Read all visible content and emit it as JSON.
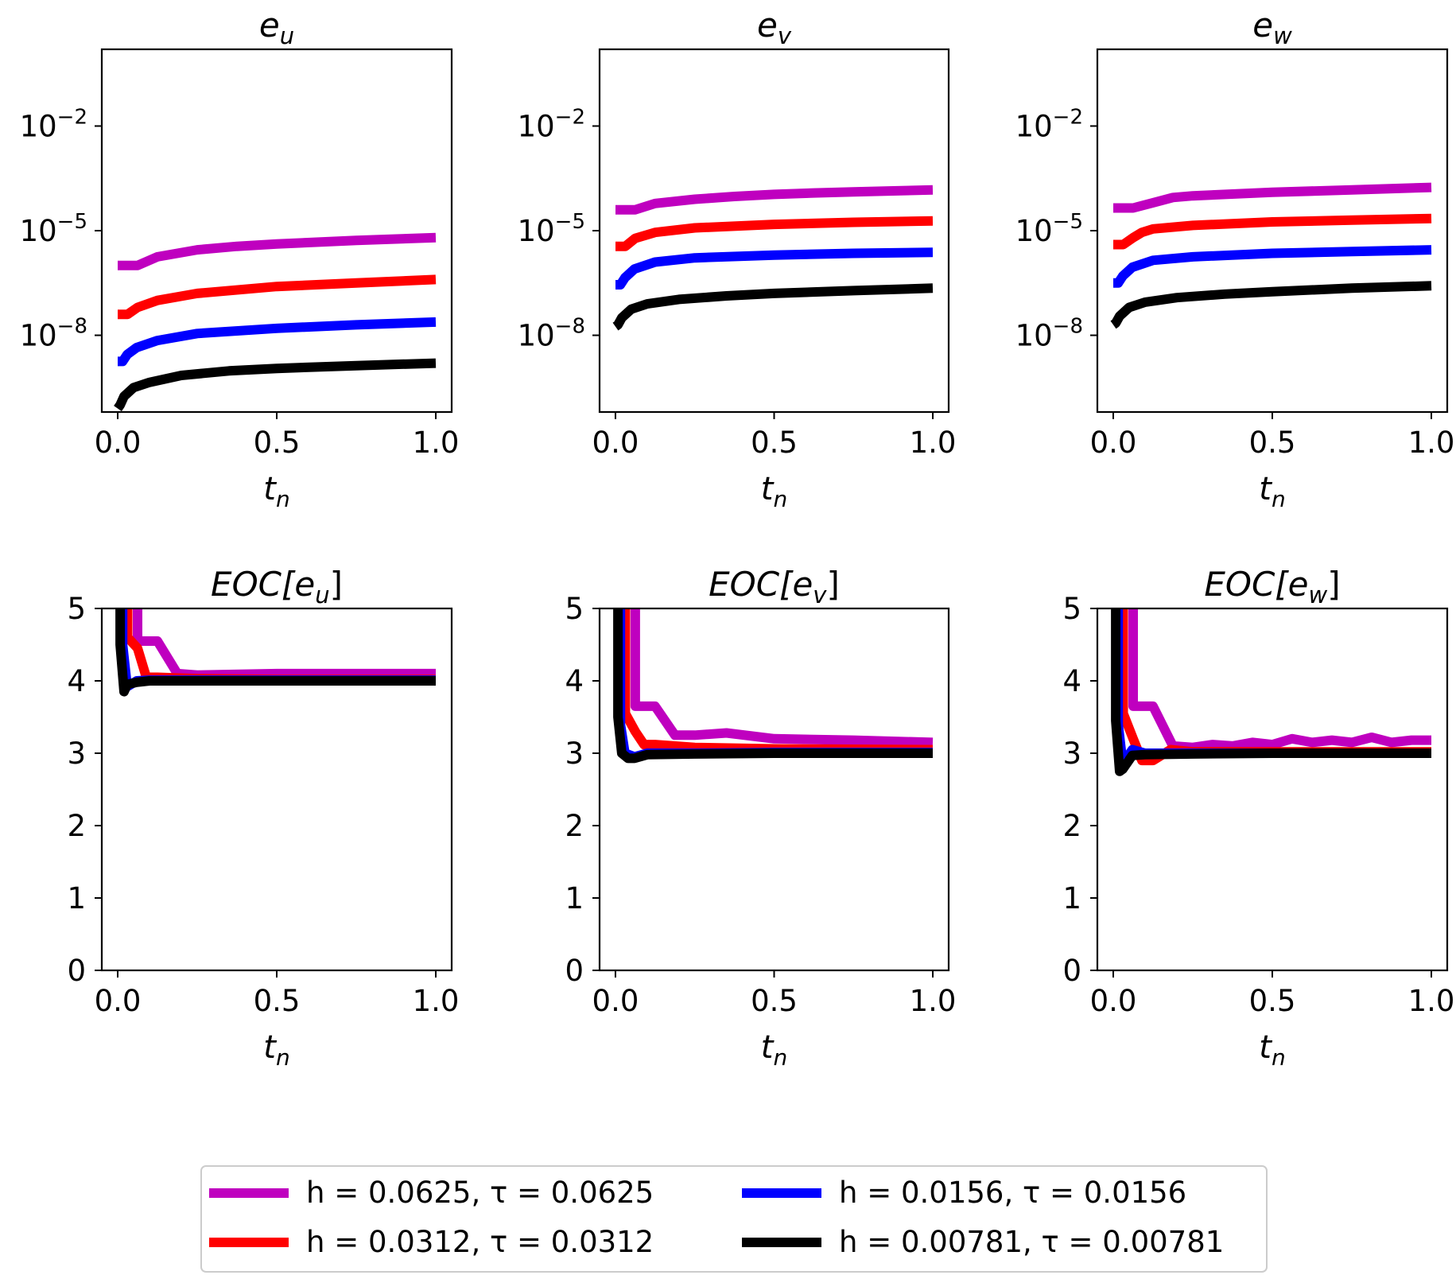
{
  "legend": {
    "items": [
      {
        "label": "h = 0.0625, τ = 0.0625",
        "color": "#bf00bf"
      },
      {
        "label": "h = 0.0312, τ = 0.0312",
        "color": "#ff0000"
      },
      {
        "label": "h = 0.0156, τ = 0.0156",
        "color": "#0000ff"
      },
      {
        "label": "h = 0.00781, τ = 0.00781",
        "color": "#000000"
      }
    ]
  },
  "chart_data": [
    {
      "type": "line",
      "title": "e_u",
      "title_base": "e",
      "title_sub": "u",
      "xlabel_base": "t",
      "xlabel_sub": "n",
      "yscale": "log",
      "xlim": [
        -0.05,
        1.05
      ],
      "ylim_log10": [
        -10.2,
        0.2
      ],
      "xticks": [
        0,
        0.5,
        1
      ],
      "xtick_labels": [
        "0.0",
        "0.5",
        "1.0"
      ],
      "yticks_log10": [
        -2,
        -5,
        -8
      ],
      "ytick_labels": [
        {
          "base": "10",
          "exp": "−2"
        },
        {
          "base": "10",
          "exp": "−5"
        },
        {
          "base": "10",
          "exp": "−8"
        }
      ],
      "series": [
        {
          "name": "h = 0.0625, τ = 0.0625",
          "color": "#bf00bf",
          "x": [
            0,
            0.0625,
            0.125,
            0.25,
            0.375,
            0.5,
            0.625,
            0.75,
            0.875,
            1.0
          ],
          "y_log10": [
            -6.0,
            -6.0,
            -5.75,
            -5.55,
            -5.45,
            -5.38,
            -5.33,
            -5.28,
            -5.24,
            -5.2
          ]
        },
        {
          "name": "h = 0.0312, τ = 0.0312",
          "color": "#ff0000",
          "x": [
            0,
            0.0312,
            0.0625,
            0.125,
            0.25,
            0.5,
            0.75,
            1.0
          ],
          "y_log10": [
            -7.4,
            -7.4,
            -7.2,
            -7.0,
            -6.8,
            -6.6,
            -6.5,
            -6.4
          ]
        },
        {
          "name": "h = 0.0156, τ = 0.0156",
          "color": "#0000ff",
          "x": [
            0,
            0.0156,
            0.03,
            0.06,
            0.125,
            0.25,
            0.5,
            0.75,
            1.0
          ],
          "y_log10": [
            -8.75,
            -8.75,
            -8.55,
            -8.35,
            -8.15,
            -7.95,
            -7.8,
            -7.7,
            -7.62
          ]
        },
        {
          "name": "h = 0.00781, τ = 0.00781",
          "color": "#000000",
          "x": [
            0,
            0.0078,
            0.02,
            0.05,
            0.1,
            0.2,
            0.35,
            0.5,
            0.75,
            1.0
          ],
          "y_log10": [
            -10.1,
            -10.0,
            -9.75,
            -9.5,
            -9.35,
            -9.15,
            -9.02,
            -8.95,
            -8.87,
            -8.8
          ]
        }
      ]
    },
    {
      "type": "line",
      "title": "e_v",
      "title_base": "e",
      "title_sub": "v",
      "xlabel_base": "t",
      "xlabel_sub": "n",
      "yscale": "log",
      "xlim": [
        -0.05,
        1.05
      ],
      "ylim_log10": [
        -10.2,
        0.2
      ],
      "xticks": [
        0,
        0.5,
        1
      ],
      "xtick_labels": [
        "0.0",
        "0.5",
        "1.0"
      ],
      "yticks_log10": [
        -2,
        -5,
        -8
      ],
      "ytick_labels": [
        {
          "base": "10",
          "exp": "−2"
        },
        {
          "base": "10",
          "exp": "−5"
        },
        {
          "base": "10",
          "exp": "−8"
        }
      ],
      "series": [
        {
          "name": "h = 0.0625, τ = 0.0625",
          "color": "#bf00bf",
          "x": [
            0,
            0.0625,
            0.125,
            0.25,
            0.375,
            0.5,
            0.625,
            0.75,
            0.875,
            1.0
          ],
          "y_log10": [
            -4.4,
            -4.4,
            -4.22,
            -4.1,
            -4.02,
            -3.96,
            -3.92,
            -3.89,
            -3.86,
            -3.83
          ]
        },
        {
          "name": "h = 0.0312, τ = 0.0312",
          "color": "#ff0000",
          "x": [
            0,
            0.0312,
            0.0625,
            0.125,
            0.25,
            0.5,
            0.75,
            1.0
          ],
          "y_log10": [
            -5.45,
            -5.45,
            -5.22,
            -5.05,
            -4.92,
            -4.82,
            -4.76,
            -4.72
          ]
        },
        {
          "name": "h = 0.0156, τ = 0.0156",
          "color": "#0000ff",
          "x": [
            0,
            0.0156,
            0.03,
            0.06,
            0.125,
            0.25,
            0.5,
            0.75,
            1.0
          ],
          "y_log10": [
            -6.55,
            -6.55,
            -6.35,
            -6.1,
            -5.9,
            -5.78,
            -5.7,
            -5.65,
            -5.62
          ]
        },
        {
          "name": "h = 0.00781, τ = 0.00781",
          "color": "#000000",
          "x": [
            0,
            0.0078,
            0.02,
            0.05,
            0.1,
            0.2,
            0.35,
            0.5,
            0.75,
            1.0
          ],
          "y_log10": [
            -7.75,
            -7.7,
            -7.5,
            -7.25,
            -7.1,
            -6.97,
            -6.87,
            -6.8,
            -6.72,
            -6.65
          ]
        }
      ]
    },
    {
      "type": "line",
      "title": "e_w",
      "title_base": "e",
      "title_sub": "w",
      "xlabel_base": "t",
      "xlabel_sub": "n",
      "yscale": "log",
      "xlim": [
        -0.05,
        1.05
      ],
      "ylim_log10": [
        -10.2,
        0.2
      ],
      "xticks": [
        0,
        0.5,
        1
      ],
      "xtick_labels": [
        "0.0",
        "0.5",
        "1.0"
      ],
      "yticks_log10": [
        -2,
        -5,
        -8
      ],
      "ytick_labels": [
        {
          "base": "10",
          "exp": "−2"
        },
        {
          "base": "10",
          "exp": "−5"
        },
        {
          "base": "10",
          "exp": "−8"
        }
      ],
      "series": [
        {
          "name": "h = 0.0625, τ = 0.0625",
          "color": "#bf00bf",
          "x": [
            0,
            0.0625,
            0.125,
            0.1875,
            0.25,
            0.5,
            0.75,
            1.0
          ],
          "y_log10": [
            -4.35,
            -4.35,
            -4.2,
            -4.05,
            -4.0,
            -3.9,
            -3.83,
            -3.76
          ]
        },
        {
          "name": "h = 0.0312, τ = 0.0312",
          "color": "#ff0000",
          "x": [
            0,
            0.0312,
            0.0625,
            0.09,
            0.125,
            0.25,
            0.5,
            0.75,
            1.0
          ],
          "y_log10": [
            -5.4,
            -5.4,
            -5.2,
            -5.05,
            -4.95,
            -4.85,
            -4.75,
            -4.7,
            -4.65
          ]
        },
        {
          "name": "h = 0.0156, τ = 0.0156",
          "color": "#0000ff",
          "x": [
            0,
            0.0156,
            0.03,
            0.06,
            0.125,
            0.25,
            0.5,
            0.75,
            1.0
          ],
          "y_log10": [
            -6.5,
            -6.5,
            -6.3,
            -6.05,
            -5.85,
            -5.75,
            -5.65,
            -5.6,
            -5.55
          ]
        },
        {
          "name": "h = 0.00781, τ = 0.00781",
          "color": "#000000",
          "x": [
            0,
            0.0078,
            0.02,
            0.05,
            0.1,
            0.2,
            0.35,
            0.5,
            0.75,
            1.0
          ],
          "y_log10": [
            -7.7,
            -7.65,
            -7.45,
            -7.2,
            -7.05,
            -6.92,
            -6.82,
            -6.75,
            -6.65,
            -6.58
          ]
        }
      ]
    },
    {
      "type": "line",
      "title": "EOC[e_u]",
      "title_base": "EOC[e",
      "title_sub": "u",
      "title_tail": "]",
      "xlabel_base": "t",
      "xlabel_sub": "n",
      "yscale": "linear",
      "xlim": [
        -0.05,
        1.05
      ],
      "ylim": [
        0,
        5
      ],
      "xticks": [
        0,
        0.5,
        1
      ],
      "xtick_labels": [
        "0.0",
        "0.5",
        "1.0"
      ],
      "yticks": [
        0,
        1,
        2,
        3,
        4,
        5
      ],
      "ytick_labels": [
        "0",
        "1",
        "2",
        "3",
        "4",
        "5"
      ],
      "series": [
        {
          "name": "h = 0.0625, τ = 0.0625",
          "color": "#bf00bf",
          "x": [
            0.0625,
            0.0625,
            0.125,
            0.1875,
            0.25,
            0.5,
            0.75,
            1.0
          ],
          "y": [
            5.3,
            4.55,
            4.55,
            4.1,
            4.08,
            4.1,
            4.1,
            4.1
          ]
        },
        {
          "name": "h = 0.0312, τ = 0.0312",
          "color": "#ff0000",
          "x": [
            0.0312,
            0.0312,
            0.0625,
            0.09,
            0.125,
            0.25,
            0.5,
            1.0
          ],
          "y": [
            5.3,
            4.6,
            4.45,
            4.05,
            4.05,
            4.03,
            4.02,
            4.02
          ]
        },
        {
          "name": "h = 0.0156, τ = 0.0156",
          "color": "#0000ff",
          "x": [
            0.0156,
            0.0156,
            0.03,
            0.06,
            0.1,
            0.25,
            0.5,
            1.0
          ],
          "y": [
            5.3,
            4.5,
            3.92,
            4.0,
            4.01,
            4.01,
            4.01,
            4.01
          ]
        },
        {
          "name": "h = 0.00781, τ = 0.00781",
          "color": "#000000",
          "x": [
            0.0078,
            0.0078,
            0.02,
            0.03,
            0.06,
            0.1,
            0.25,
            0.5,
            1.0
          ],
          "y": [
            5.3,
            4.5,
            3.85,
            3.95,
            3.98,
            4.0,
            4.0,
            4.0,
            4.0
          ]
        }
      ]
    },
    {
      "type": "line",
      "title": "EOC[e_v]",
      "title_base": "EOC[e",
      "title_sub": "v",
      "title_tail": "]",
      "xlabel_base": "t",
      "xlabel_sub": "n",
      "yscale": "linear",
      "xlim": [
        -0.05,
        1.05
      ],
      "ylim": [
        0,
        5
      ],
      "xticks": [
        0,
        0.5,
        1
      ],
      "xtick_labels": [
        "0.0",
        "0.5",
        "1.0"
      ],
      "yticks": [
        0,
        1,
        2,
        3,
        4,
        5
      ],
      "ytick_labels": [
        "0",
        "1",
        "2",
        "3",
        "4",
        "5"
      ],
      "series": [
        {
          "name": "h = 0.0625, τ = 0.0625",
          "color": "#bf00bf",
          "x": [
            0.0625,
            0.0625,
            0.125,
            0.1875,
            0.25,
            0.35,
            0.5,
            0.75,
            1.0
          ],
          "y": [
            5.3,
            3.65,
            3.65,
            3.25,
            3.25,
            3.28,
            3.2,
            3.18,
            3.15
          ]
        },
        {
          "name": "h = 0.0312, τ = 0.0312",
          "color": "#ff0000",
          "x": [
            0.0312,
            0.0312,
            0.0625,
            0.09,
            0.125,
            0.25,
            0.5,
            1.0
          ],
          "y": [
            5.3,
            3.55,
            3.3,
            3.12,
            3.12,
            3.08,
            3.06,
            3.05
          ]
        },
        {
          "name": "h = 0.0156, τ = 0.0156",
          "color": "#0000ff",
          "x": [
            0.0156,
            0.0156,
            0.03,
            0.06,
            0.1,
            0.25,
            0.5,
            1.0
          ],
          "y": [
            5.3,
            3.4,
            3.0,
            2.95,
            3.0,
            3.0,
            3.01,
            3.01
          ]
        },
        {
          "name": "h = 0.00781, τ = 0.00781",
          "color": "#000000",
          "x": [
            0.0078,
            0.0078,
            0.02,
            0.04,
            0.06,
            0.1,
            0.25,
            0.5,
            1.0
          ],
          "y": [
            5.3,
            3.5,
            3.0,
            2.93,
            2.93,
            2.98,
            2.99,
            3.0,
            3.0
          ]
        }
      ]
    },
    {
      "type": "line",
      "title": "EOC[e_w]",
      "title_base": "EOC[e",
      "title_sub": "w",
      "title_tail": "]",
      "xlabel_base": "t",
      "xlabel_sub": "n",
      "yscale": "linear",
      "xlim": [
        -0.05,
        1.05
      ],
      "ylim": [
        0,
        5
      ],
      "xticks": [
        0,
        0.5,
        1
      ],
      "xtick_labels": [
        "0.0",
        "0.5",
        "1.0"
      ],
      "yticks": [
        0,
        1,
        2,
        3,
        4,
        5
      ],
      "ytick_labels": [
        "0",
        "1",
        "2",
        "3",
        "4",
        "5"
      ],
      "series": [
        {
          "name": "h = 0.0625, τ = 0.0625",
          "color": "#bf00bf",
          "x": [
            0.0625,
            0.0625,
            0.125,
            0.1875,
            0.25,
            0.3125,
            0.375,
            0.4375,
            0.5,
            0.5625,
            0.625,
            0.6875,
            0.75,
            0.8125,
            0.875,
            0.9375,
            1.0
          ],
          "y": [
            5.3,
            3.65,
            3.65,
            3.1,
            3.08,
            3.12,
            3.1,
            3.15,
            3.12,
            3.2,
            3.15,
            3.18,
            3.15,
            3.22,
            3.15,
            3.18,
            3.18
          ]
        },
        {
          "name": "h = 0.0312, τ = 0.0312",
          "color": "#ff0000",
          "x": [
            0.0312,
            0.0312,
            0.0625,
            0.09,
            0.125,
            0.18,
            0.25,
            0.5,
            0.75,
            1.0
          ],
          "y": [
            5.3,
            3.55,
            3.2,
            2.9,
            2.9,
            3.05,
            3.02,
            3.02,
            3.02,
            3.02
          ]
        },
        {
          "name": "h = 0.0156, τ = 0.0156",
          "color": "#0000ff",
          "x": [
            0.0156,
            0.0156,
            0.03,
            0.06,
            0.1,
            0.25,
            0.5,
            1.0
          ],
          "y": [
            5.3,
            3.4,
            2.85,
            3.05,
            3.0,
            3.0,
            3.0,
            3.0
          ]
        },
        {
          "name": "h = 0.00781, τ = 0.00781",
          "color": "#000000",
          "x": [
            0.0078,
            0.0078,
            0.02,
            0.03,
            0.06,
            0.1,
            0.25,
            0.5,
            1.0
          ],
          "y": [
            5.3,
            3.45,
            2.75,
            2.78,
            2.97,
            2.98,
            2.99,
            3.0,
            3.0
          ]
        }
      ]
    }
  ]
}
